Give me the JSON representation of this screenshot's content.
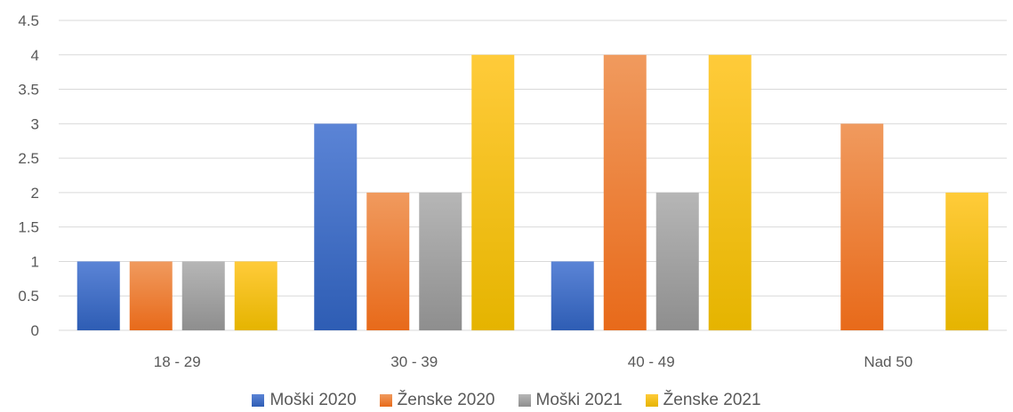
{
  "chart_data": {
    "type": "bar",
    "title": "",
    "xlabel": "",
    "ylabel": "",
    "categories": [
      "18 - 29",
      "30 - 39",
      "40 - 49",
      "Nad 50"
    ],
    "ylim": [
      0,
      4.5
    ],
    "yticks": [
      "0",
      "0.5",
      "1",
      "1.5",
      "2",
      "2.5",
      "3",
      "3.5",
      "4",
      "4.5"
    ],
    "grid": true,
    "legend_position": "bottom",
    "series": [
      {
        "name": "Moški 2020",
        "values": [
          1,
          3,
          1,
          0
        ],
        "color_top": "#5B84D6",
        "color_bottom": "#2E5DB4"
      },
      {
        "name": "Ženske 2020",
        "values": [
          1,
          2,
          4,
          3
        ],
        "color_top": "#F09A5E",
        "color_bottom": "#E86A1A"
      },
      {
        "name": "Moški 2021",
        "values": [
          1,
          2,
          2,
          0
        ],
        "color_top": "#B6B6B6",
        "color_bottom": "#8E8E8E"
      },
      {
        "name": "Ženske 2021",
        "values": [
          1,
          4,
          4,
          2
        ],
        "color_top": "#FFCB3A",
        "color_bottom": "#E5B400"
      }
    ]
  }
}
